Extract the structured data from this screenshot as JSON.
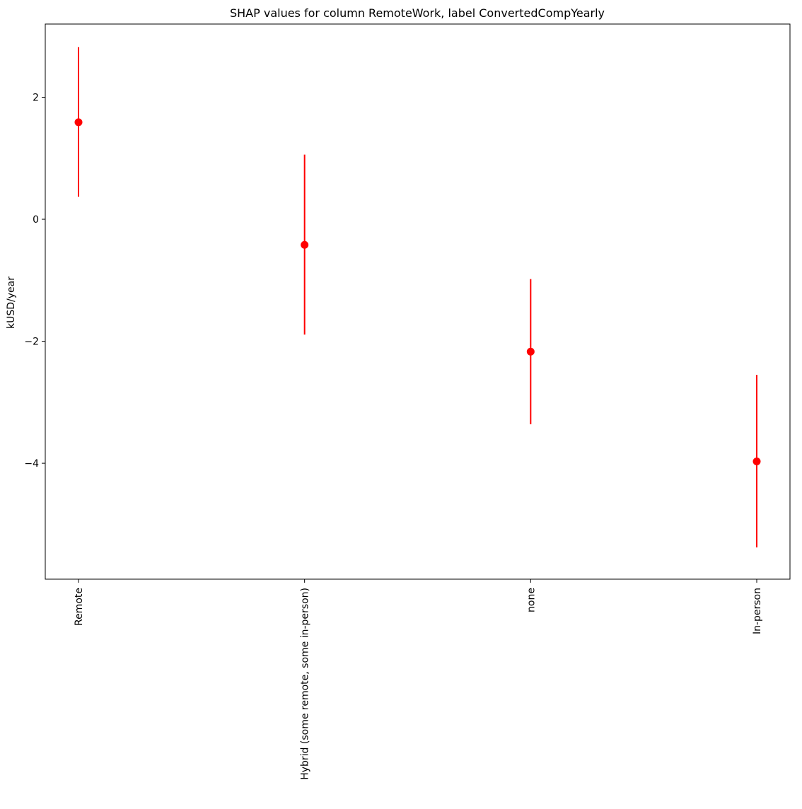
{
  "chart_data": {
    "type": "scatter",
    "title": "SHAP values for column RemoteWork, label ConvertedCompYearly",
    "xlabel": "",
    "ylabel": "kUSD/year",
    "categories": [
      "Remote",
      "Hybrid (some remote, some in-person)",
      "none",
      "In-person"
    ],
    "series": [
      {
        "values": [
          1.59,
          -0.42,
          -2.17,
          -3.97
        ],
        "lower": [
          0.37,
          -1.89,
          -3.36,
          -5.38
        ],
        "upper": [
          2.82,
          1.06,
          -0.98,
          -2.55
        ]
      }
    ],
    "ylim": [
      -5.9,
      3.2
    ],
    "yticks": [
      2,
      0,
      -2,
      -4
    ],
    "ytick_labels": [
      "2",
      "0",
      "−2",
      "−4"
    ],
    "grid": false,
    "legend": "none",
    "colors": {
      "marker": "#ff0000",
      "axis": "#000000"
    }
  }
}
